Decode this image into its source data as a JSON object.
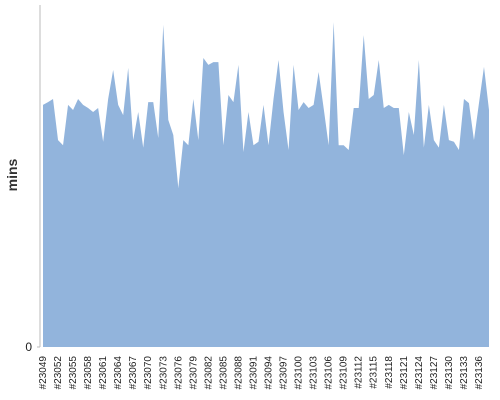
{
  "chart_data": {
    "type": "area",
    "y_label": "mins",
    "categories": [
      "#23049",
      null,
      null,
      "#23052",
      null,
      null,
      "#23055",
      null,
      null,
      "#23058",
      null,
      null,
      "#23061",
      null,
      null,
      "#23064",
      null,
      null,
      "#23067",
      null,
      null,
      "#23070",
      null,
      null,
      "#23073",
      null,
      null,
      "#23076",
      null,
      null,
      "#23079",
      null,
      null,
      "#23082",
      null,
      null,
      "#23085",
      null,
      null,
      "#23088",
      null,
      null,
      "#23091",
      null,
      null,
      "#23094",
      null,
      null,
      "#23097",
      null,
      null,
      "#23100",
      null,
      null,
      "#23103",
      null,
      null,
      "#23106",
      null,
      null,
      "#23109",
      null,
      null,
      "#23112",
      null,
      null,
      "#23115",
      null,
      null,
      "#23118",
      null,
      null,
      "#23121",
      null,
      null,
      "#23124",
      null,
      null,
      "#23127",
      null,
      null,
      "#23130",
      null,
      null,
      "#23133",
      null,
      null,
      "#23136",
      null,
      null
    ],
    "values": [
      70.8,
      71.6,
      72.5,
      60.5,
      59,
      70.8,
      69.3,
      72.5,
      70.8,
      69.9,
      68.7,
      69.9,
      60,
      72.5,
      81,
      70.8,
      67.8,
      81.6,
      60.5,
      68.7,
      58.3,
      71.6,
      71.6,
      61.1,
      94.2,
      66.4,
      62,
      46.5,
      60.5,
      59,
      72.5,
      60.5,
      84.5,
      82.5,
      83.3,
      83.3,
      59,
      73.7,
      71.6,
      82.5,
      57,
      68.7,
      59,
      60,
      70.8,
      59,
      72.5,
      83.9,
      68.7,
      57.6,
      82.5,
      69.3,
      71.6,
      69.9,
      70.8,
      80.4,
      69.9,
      59,
      95,
      59,
      59,
      57.6,
      69.9,
      69.9,
      91.2,
      72.5,
      73.7,
      83.9,
      69.9,
      70.8,
      69.9,
      69.9,
      56.1,
      68.7,
      62,
      83.9,
      58.3,
      70.8,
      60.5,
      58.3,
      70.8,
      60.5,
      60,
      57.6,
      72.5,
      71.3,
      60.5,
      71.3,
      81.9,
      69.3
    ],
    "color": "#92b4dc",
    "ylim": [
      0,
      100
    ],
    "yticks": [
      0
    ]
  }
}
